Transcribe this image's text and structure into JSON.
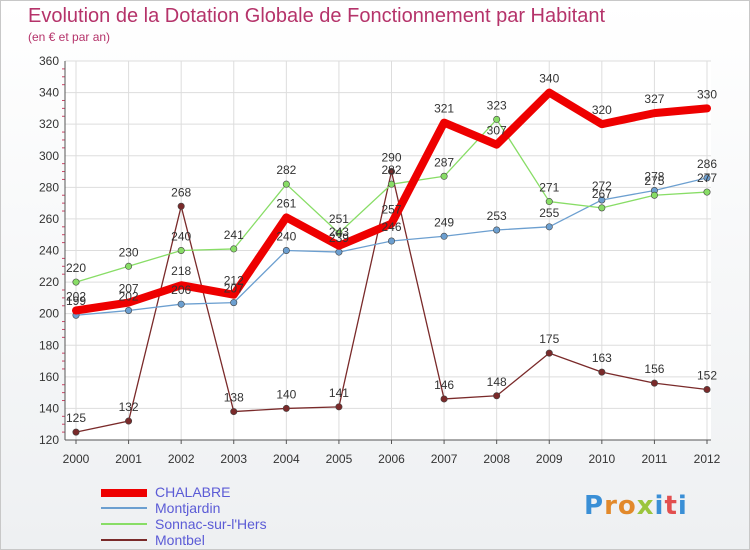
{
  "header": {
    "title": "Evolution de la Dotation Globale de Fonctionnement par Habitant",
    "subtitle": "(en € et par an)"
  },
  "logo": {
    "text": "Proxiti"
  },
  "chart_data": {
    "type": "line",
    "x": [
      "2000",
      "2001",
      "2002",
      "2003",
      "2004",
      "2005",
      "2006",
      "2007",
      "2008",
      "2009",
      "2010",
      "2011",
      "2012"
    ],
    "ylim": [
      120,
      360
    ],
    "yticks": [
      120,
      140,
      160,
      180,
      200,
      220,
      240,
      260,
      280,
      300,
      320,
      340,
      360
    ],
    "grid": true,
    "legend_position": "bottom-left",
    "series": [
      {
        "name": "CHALABRE",
        "color": "#ee0000",
        "values": [
          202,
          207,
          218,
          212,
          261,
          243,
          257,
          321,
          307,
          340,
          320,
          327,
          330
        ]
      },
      {
        "name": "Montjardin",
        "color": "#6c9fd0",
        "values": [
          199,
          202,
          206,
          207,
          240,
          239,
          246,
          249,
          253,
          255,
          272,
          278,
          286
        ]
      },
      {
        "name": "Sonnac-sur-l'Hers",
        "color": "#88dd66",
        "values": [
          220,
          230,
          240,
          241,
          282,
          251,
          282,
          287,
          323,
          271,
          267,
          275,
          277
        ]
      },
      {
        "name": "Montbel",
        "color": "#7a2a2a",
        "values": [
          125,
          132,
          268,
          138,
          140,
          141,
          290,
          146,
          148,
          175,
          163,
          156,
          152
        ]
      }
    ]
  }
}
